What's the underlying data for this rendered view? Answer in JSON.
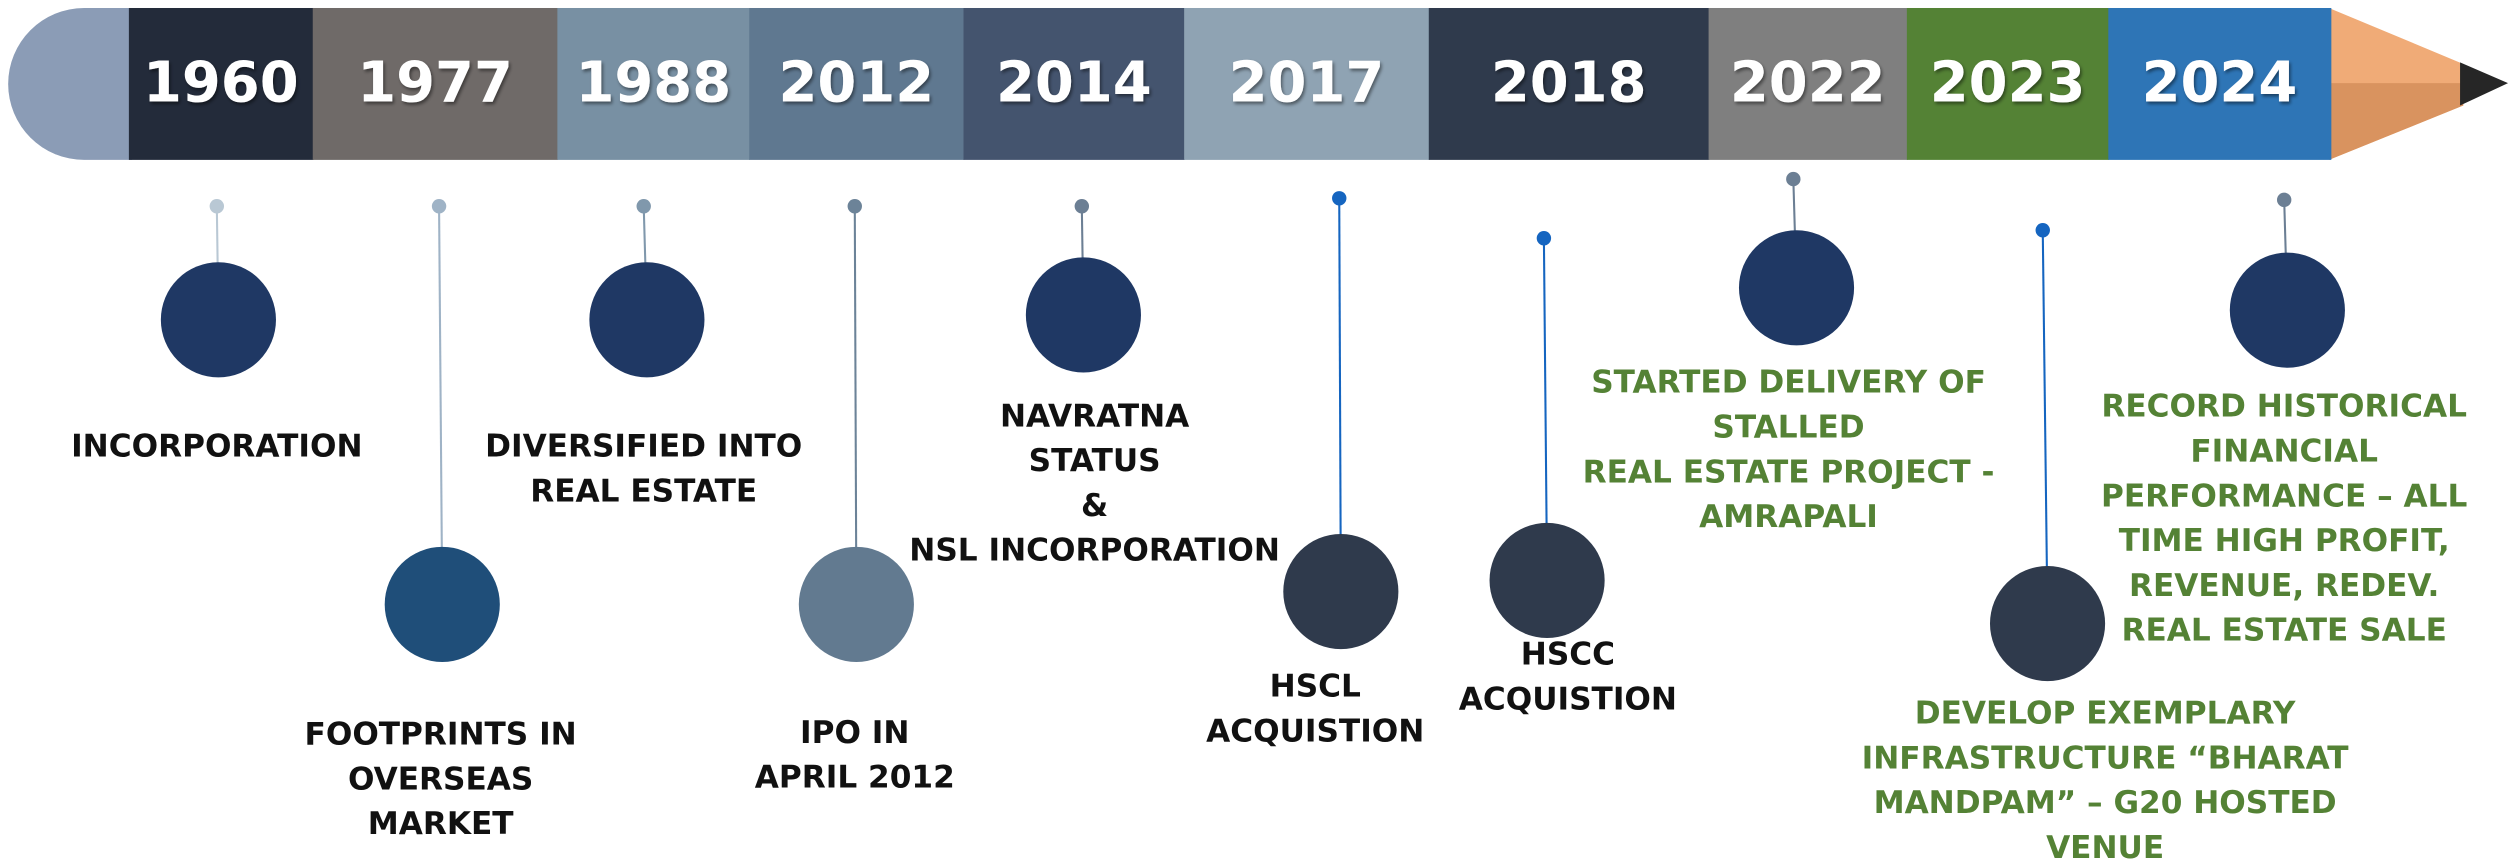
{
  "events": [
    {
      "year": "1960",
      "lines": [
        "INCORPORATION"
      ]
    },
    {
      "year": "1977",
      "lines": [
        "FOOTPRINTS IN",
        "OVERSEAS",
        "MARKET"
      ]
    },
    {
      "year": "1988",
      "lines": [
        "DIVERSIFIED INTO",
        "REAL ESTATE"
      ]
    },
    {
      "year": "2012",
      "lines": [
        "IPO IN",
        "APRIL 2012"
      ]
    },
    {
      "year": "2014",
      "lines": [
        "NAVRATNA",
        "STATUS",
        "&",
        "NSL INCORPORATION"
      ]
    },
    {
      "year": "2017",
      "lines": [
        "HSCL",
        "ACQUISTION"
      ]
    },
    {
      "year": "2018",
      "lines": [
        "HSCC",
        "ACQUISTION"
      ]
    },
    {
      "year": "2022",
      "lines": [
        "STARTED DELIVERY OF",
        "STALLED",
        "REAL ESTATE PROJECT -",
        "AMRAPALI"
      ]
    },
    {
      "year": "2023",
      "lines": [
        "DEVELOP EXEMPLARY",
        "INFRASTRUCTURE “BHARAT",
        "MANDPAM” – G20 HOSTED",
        "VENUE"
      ]
    },
    {
      "year": "2024",
      "lines": [
        "RECORD HISTORICAL",
        "FINANCIAL",
        "PERFORMANCE – ALL",
        "TIME HIGH PROFIT,",
        "REVENUE, REDEV.",
        "REAL ESTATE SALE"
      ]
    }
  ]
}
